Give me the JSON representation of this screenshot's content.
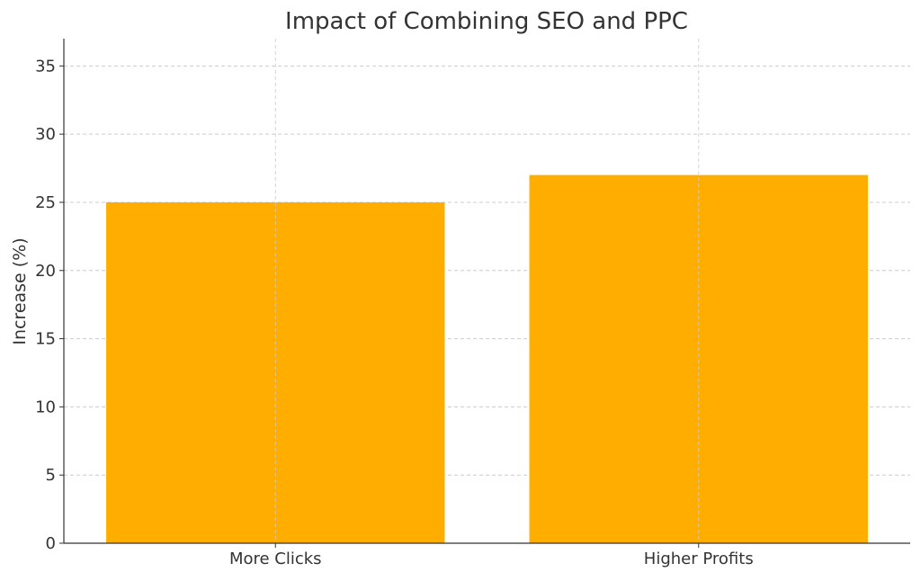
{
  "chart_data": {
    "type": "bar",
    "title": "Impact of Combining SEO and PPC",
    "xlabel": "",
    "ylabel": "Increase (%)",
    "categories": [
      "More Clicks",
      "Higher Profits"
    ],
    "values": [
      25,
      27
    ],
    "ylim": [
      0,
      37
    ],
    "yticks": [
      0,
      5,
      10,
      15,
      20,
      25,
      30,
      35
    ],
    "grid": true,
    "bar_color": "#FFAE00",
    "grid_color": "#cccccc",
    "axis_color": "#333333"
  }
}
